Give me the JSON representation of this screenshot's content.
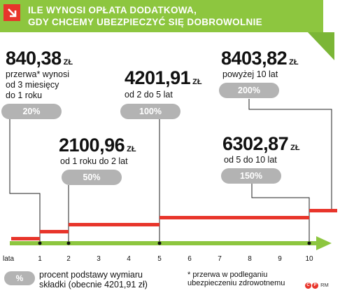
{
  "header": {
    "line1": "ILE WYNOSI OPŁATA DODATKOWA,",
    "line2": "GDY CHCEMY UBEZPIECZYĆ SIĘ DOBROWOLNIE",
    "bg_color": "#8dc63f",
    "icon": "arrow-down-right-icon",
    "icon_color": "#e8352b"
  },
  "currency": "ZŁ",
  "tiers": [
    {
      "amount": "840,38",
      "desc": [
        "przerwa* wynosi",
        "od 3 miesięcy",
        "do 1 roku"
      ],
      "percent": "20%",
      "percent_value": 20,
      "from_year": 0,
      "to_year": 1
    },
    {
      "amount": "2100,96",
      "desc": [
        "od 1 roku do 2 lat"
      ],
      "percent": "50%",
      "percent_value": 50,
      "from_year": 1,
      "to_year": 2
    },
    {
      "amount": "4201,91",
      "desc": [
        "od 2 do 5 lat"
      ],
      "percent": "100%",
      "percent_value": 100,
      "from_year": 2,
      "to_year": 5
    },
    {
      "amount": "6302,87",
      "desc": [
        "od 5 do 10 lat"
      ],
      "percent": "150%",
      "percent_value": 150,
      "from_year": 5,
      "to_year": 10
    },
    {
      "amount": "8403,82",
      "desc": [
        "powyżej 10 lat"
      ],
      "percent": "200%",
      "percent_value": 200,
      "from_year": 10,
      "to_year": null
    }
  ],
  "axis": {
    "label": "lata",
    "ticks": [
      "1",
      "2",
      "3",
      "4",
      "5",
      "6",
      "7",
      "8",
      "9",
      "10"
    ],
    "marked_ticks": [
      1,
      2,
      5,
      10
    ],
    "arrow_color": "#8dc63f",
    "step_color": "#e8352b"
  },
  "legend": {
    "swatch_label": "%",
    "text_line1": "procent podstawy wymiaru",
    "text_line2": "składki (obecnie 4201,91 zł)",
    "note_line1": "* przerwa w podleganiu",
    "note_line2": "ubezpieczeniu zdrowotnemu"
  },
  "credits": {
    "cp": "CP",
    "author": "RM"
  }
}
